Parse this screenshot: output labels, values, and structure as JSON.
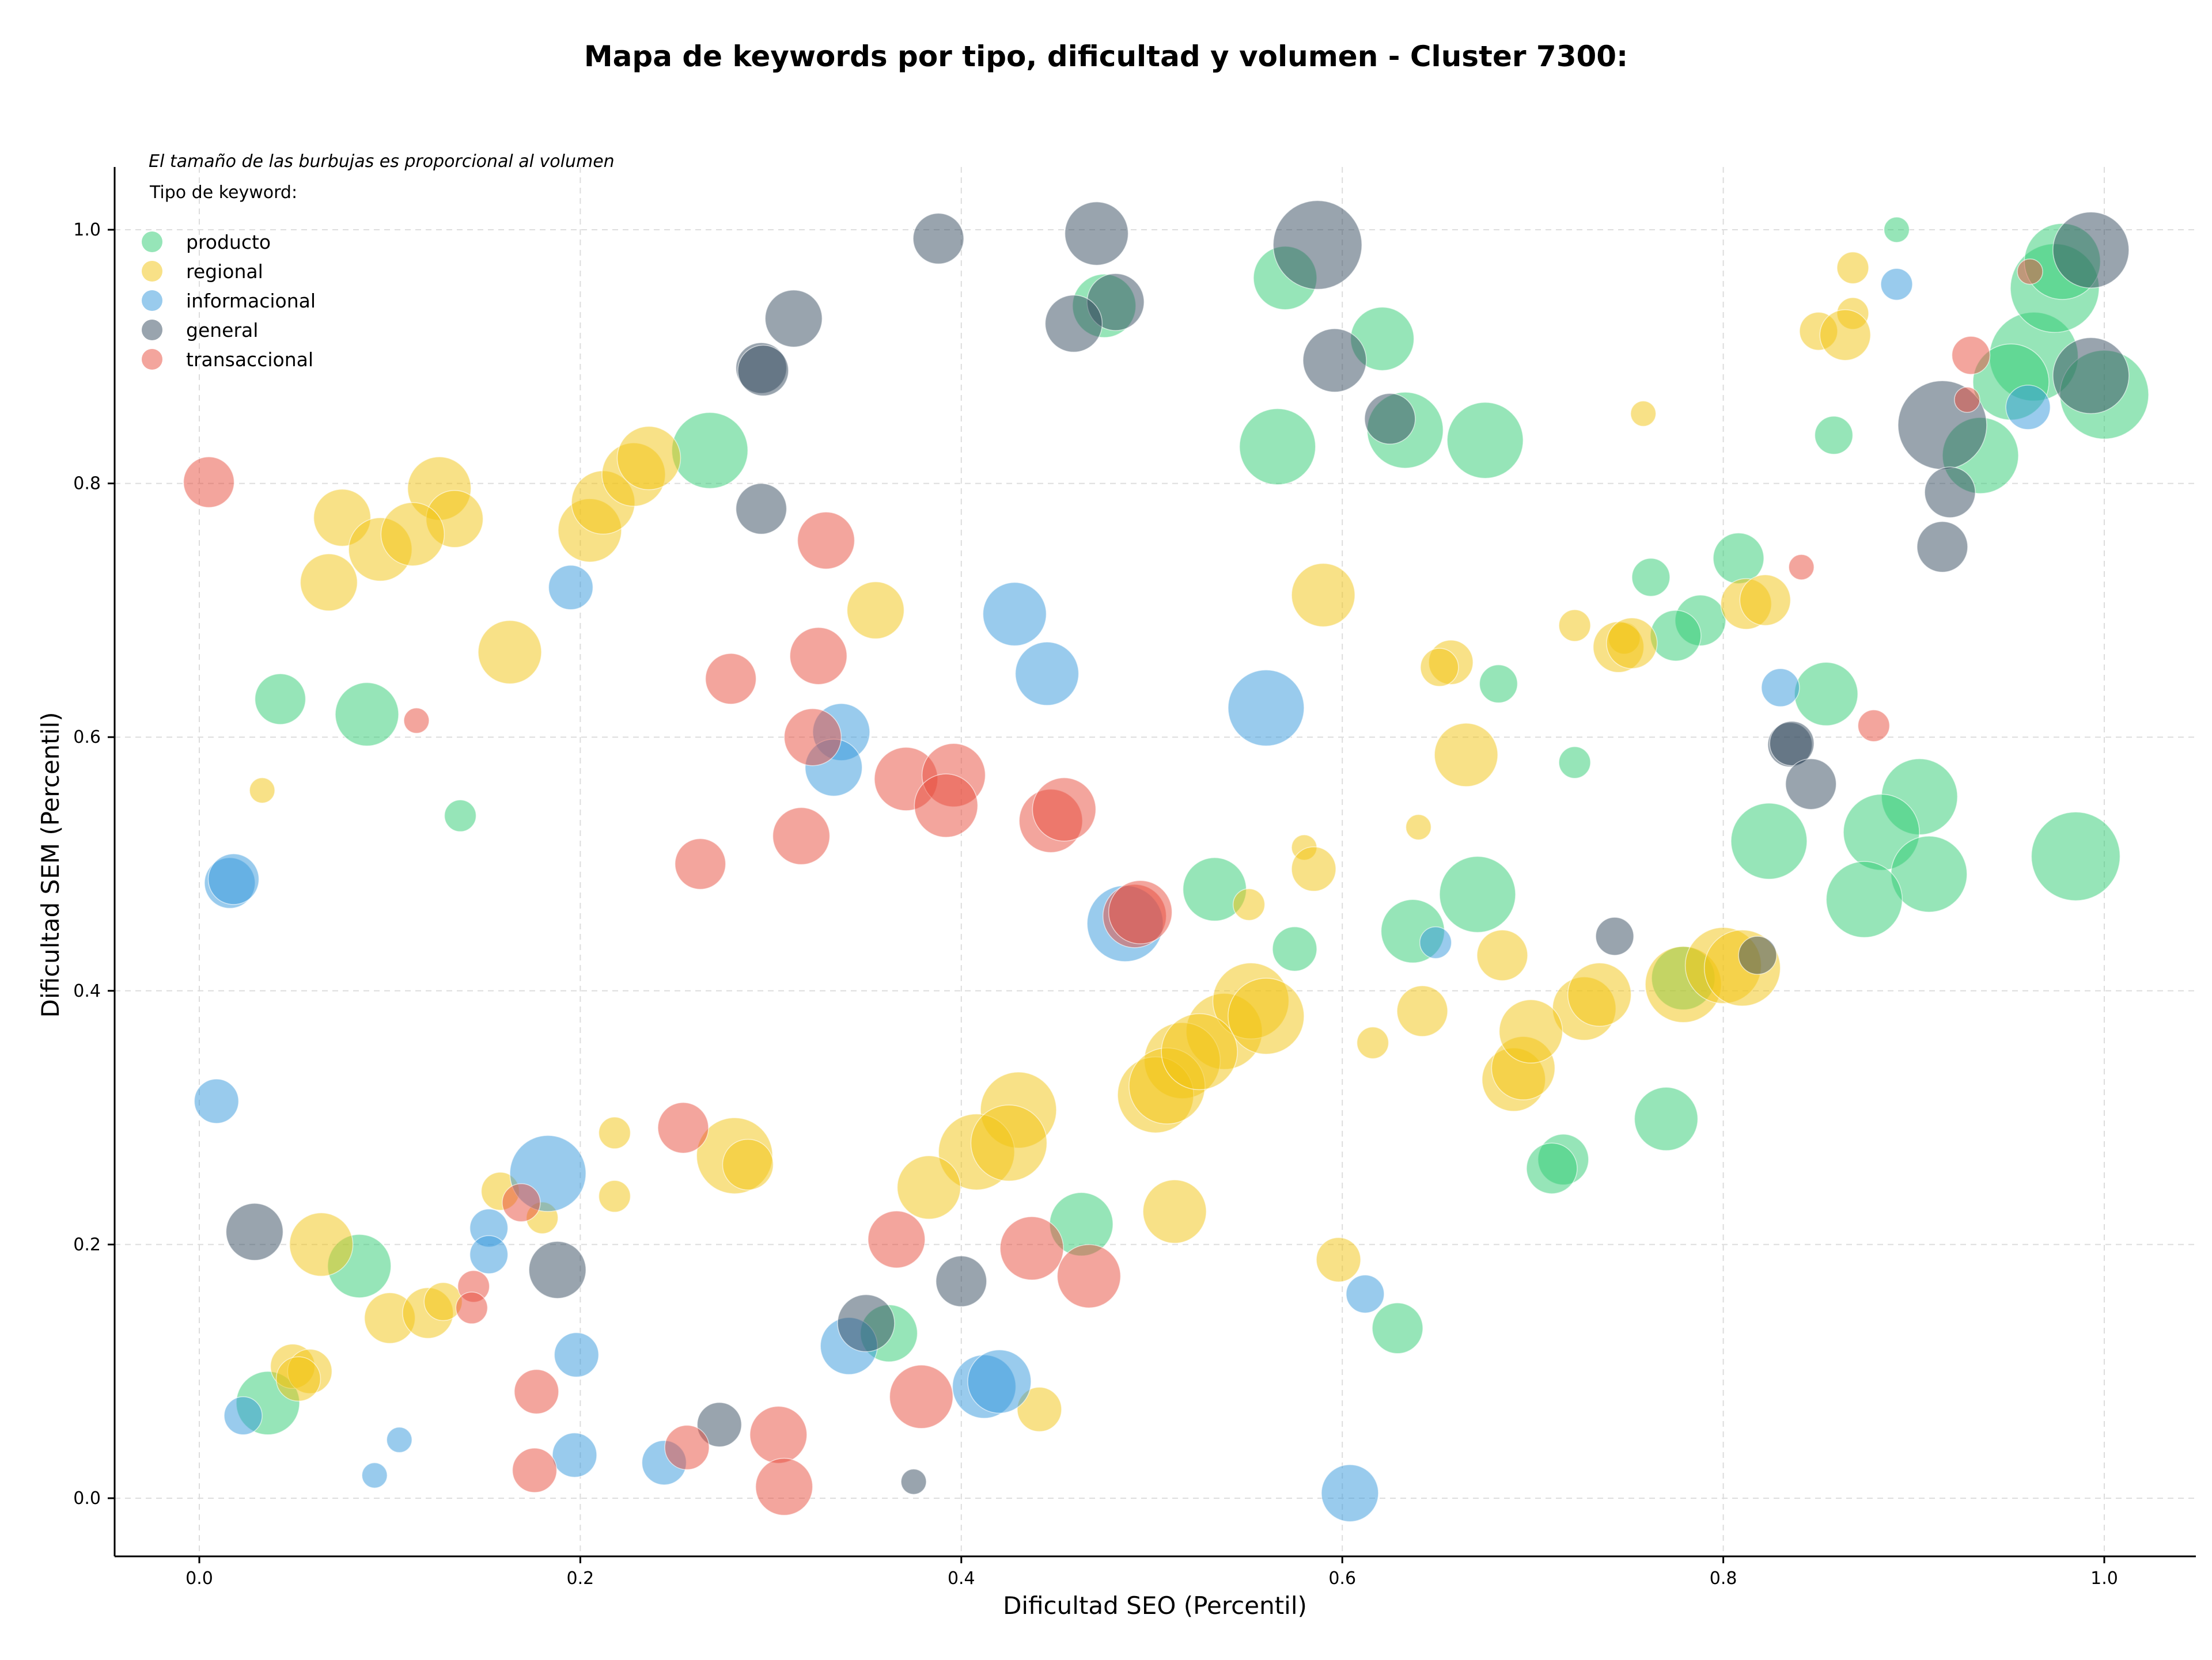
{
  "chart_data": {
    "type": "scatter",
    "title": "Mapa de keywords por tipo, dificultad y volumen - Cluster 7300:",
    "xlabel": "Dificultad SEO (Percentil)",
    "ylabel": "Dificultad SEM (Percentil)",
    "xlim": [
      -0.045,
      1.05
    ],
    "ylim": [
      -0.045,
      1.05
    ],
    "xticks": [
      0.0,
      0.2,
      0.4,
      0.6,
      0.8,
      1.0
    ],
    "yticks": [
      0.0,
      0.2,
      0.4,
      0.6,
      0.8,
      1.0
    ],
    "xtick_labels": [
      "0.0",
      "0.2",
      "0.4",
      "0.6",
      "0.8",
      "1.0"
    ],
    "ytick_labels": [
      "0.0",
      "0.2",
      "0.4",
      "0.6",
      "0.8",
      "1.0"
    ],
    "grid": true,
    "note": "El tamaño de las burbujas es proporcional al volumen",
    "legend_title": "Tipo de keyword:",
    "legend_position": "top-left",
    "series": [
      {
        "name": "producto",
        "color": "#2ecc71",
        "points": [
          [
            0.891,
            1.0,
            2
          ],
          [
            0.57,
            0.962,
            5
          ],
          [
            0.475,
            0.94,
            5
          ],
          [
            0.621,
            0.914,
            5
          ],
          [
            0.963,
            0.9,
            7
          ],
          [
            0.974,
            0.954,
            7
          ],
          [
            0.978,
            0.975,
            6
          ],
          [
            0.633,
            0.842,
            6
          ],
          [
            0.675,
            0.834,
            6
          ],
          [
            0.566,
            0.829,
            6
          ],
          [
            0.268,
            0.826,
            6
          ],
          [
            0.935,
            0.822,
            6
          ],
          [
            0.858,
            0.838,
            3
          ],
          [
            0.951,
            0.88,
            6
          ],
          [
            1.0,
            0.87,
            7
          ],
          [
            0.808,
            0.741,
            4
          ],
          [
            0.762,
            0.726,
            3
          ],
          [
            0.788,
            0.692,
            4
          ],
          [
            0.775,
            0.68,
            4
          ],
          [
            0.854,
            0.634,
            5
          ],
          [
            0.0425,
            0.63,
            4
          ],
          [
            0.088,
            0.618,
            5
          ],
          [
            0.682,
            0.642,
            3
          ],
          [
            0.722,
            0.58,
            2.5
          ],
          [
            0.137,
            0.538,
            2.5
          ],
          [
            0.903,
            0.553,
            6
          ],
          [
            0.824,
            0.518,
            6
          ],
          [
            0.883,
            0.525,
            6
          ],
          [
            0.908,
            0.492,
            6
          ],
          [
            0.985,
            0.506,
            7
          ],
          [
            0.874,
            0.472,
            6
          ],
          [
            0.671,
            0.476,
            6
          ],
          [
            0.533,
            0.48,
            5
          ],
          [
            0.637,
            0.447,
            5
          ],
          [
            0.575,
            0.433,
            3.5
          ],
          [
            0.779,
            0.41,
            5
          ],
          [
            0.77,
            0.299,
            5
          ],
          [
            0.716,
            0.267,
            4
          ],
          [
            0.71,
            0.26,
            4
          ],
          [
            0.463,
            0.216,
            5
          ],
          [
            0.084,
            0.183,
            5
          ],
          [
            0.629,
            0.134,
            4
          ],
          [
            0.362,
            0.13,
            4.5
          ],
          [
            0.036,
            0.075,
            5
          ]
        ]
      },
      {
        "name": "regional",
        "color": "#f1c40f",
        "points": [
          [
            0.868,
            0.97,
            2.5
          ],
          [
            0.85,
            0.92,
            3
          ],
          [
            0.868,
            0.934,
            2.5
          ],
          [
            0.864,
            0.917,
            4
          ],
          [
            0.758,
            0.855,
            2
          ],
          [
            0.126,
            0.796,
            5
          ],
          [
            0.134,
            0.772,
            4.5
          ],
          [
            0.075,
            0.773,
            4.5
          ],
          [
            0.095,
            0.748,
            5
          ],
          [
            0.112,
            0.76,
            5
          ],
          [
            0.068,
            0.722,
            4.5
          ],
          [
            0.205,
            0.763,
            5
          ],
          [
            0.212,
            0.785,
            5
          ],
          [
            0.228,
            0.807,
            5
          ],
          [
            0.236,
            0.82,
            5
          ],
          [
            0.59,
            0.712,
            5
          ],
          [
            0.355,
            0.7,
            4.5
          ],
          [
            0.812,
            0.705,
            4
          ],
          [
            0.822,
            0.708,
            4
          ],
          [
            0.722,
            0.688,
            2.5
          ],
          [
            0.748,
            0.678,
            2.5
          ],
          [
            0.745,
            0.671,
            4
          ],
          [
            0.752,
            0.674,
            4
          ],
          [
            0.657,
            0.659,
            3.5
          ],
          [
            0.651,
            0.655,
            3
          ],
          [
            0.163,
            0.667,
            5
          ],
          [
            0.033,
            0.558,
            2
          ],
          [
            0.665,
            0.586,
            5
          ],
          [
            0.64,
            0.529,
            2
          ],
          [
            0.58,
            0.513,
            2
          ],
          [
            0.585,
            0.496,
            3.5
          ],
          [
            0.551,
            0.468,
            2.5
          ],
          [
            0.684,
            0.428,
            4
          ],
          [
            0.642,
            0.384,
            4
          ],
          [
            0.727,
            0.386,
            5
          ],
          [
            0.735,
            0.397,
            5
          ],
          [
            0.779,
            0.405,
            6
          ],
          [
            0.8,
            0.42,
            6
          ],
          [
            0.81,
            0.418,
            6
          ],
          [
            0.616,
            0.359,
            2.5
          ],
          [
            0.69,
            0.33,
            5
          ],
          [
            0.695,
            0.339,
            5
          ],
          [
            0.699,
            0.368,
            5
          ],
          [
            0.538,
            0.368,
            6
          ],
          [
            0.552,
            0.392,
            6
          ],
          [
            0.56,
            0.38,
            6
          ],
          [
            0.516,
            0.345,
            6
          ],
          [
            0.502,
            0.318,
            6
          ],
          [
            0.508,
            0.325,
            6
          ],
          [
            0.525,
            0.352,
            6
          ],
          [
            0.43,
            0.306,
            6
          ],
          [
            0.408,
            0.273,
            6
          ],
          [
            0.425,
            0.28,
            6
          ],
          [
            0.281,
            0.27,
            6
          ],
          [
            0.288,
            0.263,
            4
          ],
          [
            0.383,
            0.245,
            5
          ],
          [
            0.512,
            0.226,
            5
          ],
          [
            0.218,
            0.288,
            2.5
          ],
          [
            0.158,
            0.242,
            3
          ],
          [
            0.18,
            0.221,
            2.5
          ],
          [
            0.218,
            0.238,
            2.5
          ],
          [
            0.064,
            0.2,
            5
          ],
          [
            0.1,
            0.142,
            4
          ],
          [
            0.12,
            0.146,
            4
          ],
          [
            0.128,
            0.155,
            3
          ],
          [
            0.598,
            0.188,
            3.5
          ],
          [
            0.441,
            0.07,
            3.5
          ],
          [
            0.049,
            0.104,
            3.5
          ],
          [
            0.058,
            0.1,
            3.5
          ],
          [
            0.052,
            0.094,
            3.5
          ]
        ]
      },
      {
        "name": "informacional",
        "color": "#3498db",
        "points": [
          [
            0.891,
            0.957,
            2.5
          ],
          [
            0.96,
            0.86,
            3.5
          ],
          [
            0.195,
            0.718,
            3.5
          ],
          [
            0.428,
            0.697,
            5
          ],
          [
            0.445,
            0.65,
            5
          ],
          [
            0.83,
            0.639,
            3
          ],
          [
            0.56,
            0.623,
            6
          ],
          [
            0.337,
            0.604,
            4.5
          ],
          [
            0.333,
            0.576,
            4.5
          ],
          [
            0.016,
            0.485,
            4
          ],
          [
            0.018,
            0.488,
            4
          ],
          [
            0.486,
            0.453,
            6
          ],
          [
            0.649,
            0.438,
            2.5
          ],
          [
            0.009,
            0.313,
            3.5
          ],
          [
            0.183,
            0.256,
            6
          ],
          [
            0.152,
            0.213,
            3
          ],
          [
            0.152,
            0.192,
            3
          ],
          [
            0.612,
            0.161,
            3
          ],
          [
            0.341,
            0.12,
            4.5
          ],
          [
            0.198,
            0.113,
            3.5
          ],
          [
            0.412,
            0.088,
            5
          ],
          [
            0.42,
            0.092,
            5
          ],
          [
            0.023,
            0.065,
            3
          ],
          [
            0.105,
            0.046,
            2
          ],
          [
            0.092,
            0.018,
            2
          ],
          [
            0.197,
            0.034,
            3.5
          ],
          [
            0.244,
            0.028,
            3.5
          ],
          [
            0.604,
            0.004,
            4.5
          ]
        ]
      },
      {
        "name": "general",
        "color": "#34495e",
        "points": [
          [
            0.388,
            0.993,
            4
          ],
          [
            0.471,
            0.997,
            5
          ],
          [
            0.587,
            0.988,
            7
          ],
          [
            0.481,
            0.943,
            4.5
          ],
          [
            0.459,
            0.926,
            4.5
          ],
          [
            0.312,
            0.93,
            4.5
          ],
          [
            0.295,
            0.891,
            4
          ],
          [
            0.296,
            0.889,
            4
          ],
          [
            0.596,
            0.897,
            5
          ],
          [
            0.993,
            0.984,
            6
          ],
          [
            0.993,
            0.885,
            6
          ],
          [
            0.625,
            0.851,
            4
          ],
          [
            0.915,
            0.846,
            7
          ],
          [
            0.919,
            0.793,
            4
          ],
          [
            0.915,
            0.75,
            4
          ],
          [
            0.295,
            0.78,
            4
          ],
          [
            0.835,
            0.594,
            3.5
          ],
          [
            0.836,
            0.595,
            3.5
          ],
          [
            0.846,
            0.563,
            4
          ],
          [
            0.743,
            0.443,
            3
          ],
          [
            0.818,
            0.428,
            3
          ],
          [
            0.029,
            0.21,
            4.5
          ],
          [
            0.188,
            0.18,
            4.5
          ],
          [
            0.4,
            0.171,
            4
          ],
          [
            0.35,
            0.138,
            4.5
          ],
          [
            0.273,
            0.058,
            3.5
          ],
          [
            0.375,
            0.013,
            2
          ]
        ]
      },
      {
        "name": "transaccional",
        "color": "#e74c3c",
        "points": [
          [
            0.961,
            0.967,
            2
          ],
          [
            0.93,
            0.901,
            3
          ],
          [
            0.928,
            0.866,
            2
          ],
          [
            0.005,
            0.801,
            4
          ],
          [
            0.329,
            0.755,
            4.5
          ],
          [
            0.841,
            0.734,
            2
          ],
          [
            0.325,
            0.664,
            4.5
          ],
          [
            0.279,
            0.646,
            4
          ],
          [
            0.114,
            0.613,
            2
          ],
          [
            0.322,
            0.6,
            4.5
          ],
          [
            0.879,
            0.609,
            2.5
          ],
          [
            0.371,
            0.567,
            5
          ],
          [
            0.396,
            0.57,
            5
          ],
          [
            0.392,
            0.546,
            5
          ],
          [
            0.447,
            0.534,
            5
          ],
          [
            0.454,
            0.543,
            5
          ],
          [
            0.316,
            0.522,
            4.5
          ],
          [
            0.263,
            0.5,
            4
          ],
          [
            0.491,
            0.459,
            5
          ],
          [
            0.494,
            0.462,
            5
          ],
          [
            0.254,
            0.292,
            4
          ],
          [
            0.169,
            0.233,
            3
          ],
          [
            0.366,
            0.204,
            4.5
          ],
          [
            0.437,
            0.197,
            5
          ],
          [
            0.467,
            0.175,
            5
          ],
          [
            0.144,
            0.167,
            2.5
          ],
          [
            0.143,
            0.15,
            2.5
          ],
          [
            0.379,
            0.08,
            5
          ],
          [
            0.177,
            0.084,
            3.5
          ],
          [
            0.256,
            0.04,
            3.5
          ],
          [
            0.304,
            0.05,
            4.5
          ],
          [
            0.307,
            0.009,
            4.5
          ],
          [
            0.176,
            0.022,
            3.5
          ]
        ]
      }
    ]
  }
}
